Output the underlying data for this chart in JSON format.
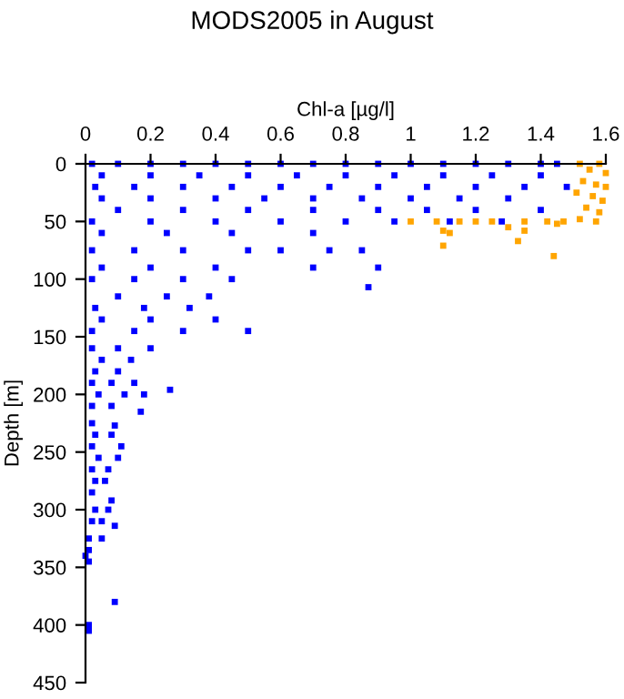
{
  "chart_data": {
    "type": "scatter",
    "title": "MODS2005 in August",
    "xlabel": "Chl-a [µg/l]",
    "ylabel": "Depth [m]",
    "xlim": [
      0,
      1.6
    ],
    "xticks": [
      0,
      0.2,
      0.4,
      0.6,
      0.8,
      1,
      1.2,
      1.4,
      1.6
    ],
    "ylim": [
      450,
      0
    ],
    "yticks": [
      0,
      50,
      100,
      150,
      200,
      250,
      300,
      350,
      400,
      450
    ],
    "marker": "square",
    "grid": false,
    "legend": false,
    "series": [
      {
        "color": "#0000ff",
        "x": [
          0.02,
          0.1,
          0.2,
          0.3,
          0.4,
          0.5,
          0.6,
          0.7,
          0.8,
          0.9,
          1.0,
          1.1,
          1.2,
          1.3,
          1.4,
          1.45,
          0.05,
          0.2,
          0.35,
          0.5,
          0.65,
          0.8,
          0.95,
          1.1,
          1.25,
          1.4,
          0.03,
          0.15,
          0.3,
          0.45,
          0.6,
          0.75,
          0.9,
          1.05,
          1.2,
          1.35,
          1.48,
          0.05,
          0.2,
          0.4,
          0.55,
          0.7,
          0.85,
          1.0,
          1.15,
          1.3,
          0.1,
          0.3,
          0.5,
          0.7,
          0.9,
          1.05,
          1.2,
          1.4,
          0.02,
          0.2,
          0.4,
          0.6,
          0.8,
          0.95,
          1.12,
          1.28,
          0.05,
          0.25,
          0.45,
          0.7,
          0.02,
          0.15,
          0.3,
          0.5,
          0.6,
          0.75,
          0.85,
          0.05,
          0.2,
          0.4,
          0.7,
          0.9,
          0.02,
          0.15,
          0.3,
          0.45,
          0.87,
          0.1,
          0.25,
          0.38,
          0.03,
          0.18,
          0.32,
          0.05,
          0.2,
          0.4,
          0.02,
          0.15,
          0.3,
          0.5,
          0.02,
          0.1,
          0.2,
          0.05,
          0.14,
          0.03,
          0.1,
          0.02,
          0.08,
          0.15,
          0.26,
          0.04,
          0.12,
          0.18,
          0.02,
          0.08,
          0.17,
          0.02,
          0.09,
          0.03,
          0.08,
          0.02,
          0.11,
          0.04,
          0.1,
          0.02,
          0.07,
          0.03,
          0.06,
          0.02,
          0.08,
          0.03,
          0.07,
          0.02,
          0.05,
          0.09,
          0.01,
          0.05,
          0.01,
          0.0,
          0.01,
          0.09,
          0.01,
          0.01
        ],
        "values": [
          0,
          0,
          0,
          0,
          0,
          0,
          0,
          0,
          0,
          0,
          0,
          0,
          0,
          0,
          0,
          0,
          10,
          10,
          10,
          10,
          10,
          10,
          10,
          10,
          10,
          10,
          20,
          20,
          20,
          20,
          20,
          20,
          20,
          20,
          20,
          20,
          20,
          30,
          30,
          30,
          30,
          30,
          30,
          30,
          30,
          30,
          40,
          40,
          40,
          40,
          40,
          40,
          40,
          40,
          50,
          50,
          50,
          50,
          50,
          50,
          50,
          50,
          60,
          60,
          60,
          60,
          75,
          75,
          75,
          75,
          75,
          75,
          75,
          90,
          90,
          90,
          90,
          90,
          100,
          100,
          100,
          100,
          107,
          115,
          115,
          115,
          125,
          125,
          125,
          135,
          135,
          135,
          145,
          145,
          145,
          145,
          160,
          160,
          160,
          170,
          170,
          180,
          180,
          190,
          190,
          190,
          196,
          200,
          200,
          200,
          210,
          210,
          215,
          225,
          227,
          235,
          235,
          245,
          245,
          255,
          255,
          265,
          265,
          275,
          275,
          285,
          292,
          300,
          300,
          310,
          310,
          314,
          325,
          325,
          335,
          340,
          345,
          380,
          400,
          405
        ]
      },
      {
        "color": "#ffa500",
        "x": [
          1.52,
          1.58,
          1.55,
          1.6,
          1.53,
          1.57,
          1.6,
          1.51,
          1.56,
          1.59,
          1.54,
          1.58,
          1.52,
          1.57,
          1.0,
          1.08,
          1.15,
          1.2,
          1.25,
          1.35,
          1.42,
          1.47,
          1.1,
          1.12,
          1.35,
          1.3,
          1.45,
          1.33,
          1.1,
          1.44
        ],
        "values": [
          0,
          0,
          5,
          8,
          15,
          18,
          20,
          25,
          28,
          32,
          38,
          42,
          48,
          50,
          50,
          50,
          50,
          50,
          50,
          50,
          50,
          50,
          58,
          60,
          58,
          55,
          52,
          67,
          71,
          80
        ]
      }
    ]
  }
}
